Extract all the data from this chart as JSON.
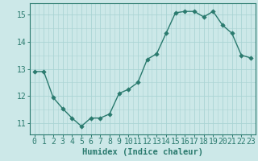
{
  "x": [
    0,
    1,
    2,
    3,
    4,
    5,
    6,
    7,
    8,
    9,
    10,
    11,
    12,
    13,
    14,
    15,
    16,
    17,
    18,
    19,
    20,
    21,
    22,
    23
  ],
  "y": [
    12.9,
    12.9,
    11.95,
    11.55,
    11.2,
    10.9,
    11.2,
    11.2,
    11.35,
    12.1,
    12.25,
    12.5,
    13.35,
    13.55,
    14.3,
    15.05,
    15.1,
    15.1,
    14.9,
    15.1,
    14.6,
    14.3,
    13.5,
    13.4
  ],
  "line_color": "#2a7a6e",
  "marker_color": "#2a7a6e",
  "bg_color": "#cce8e8",
  "grid_color": "#aad4d4",
  "xlabel": "Humidex (Indice chaleur)",
  "xlim": [
    -0.5,
    23.5
  ],
  "ylim": [
    10.6,
    15.4
  ],
  "yticks": [
    11,
    12,
    13,
    14,
    15
  ],
  "xtick_labels": [
    "0",
    "1",
    "2",
    "3",
    "4",
    "5",
    "6",
    "7",
    "8",
    "9",
    "10",
    "11",
    "12",
    "13",
    "14",
    "15",
    "16",
    "17",
    "18",
    "19",
    "20",
    "21",
    "22",
    "23"
  ],
  "xlabel_fontsize": 7.5,
  "tick_fontsize": 7.0,
  "line_width": 1.0,
  "marker_size": 2.8
}
